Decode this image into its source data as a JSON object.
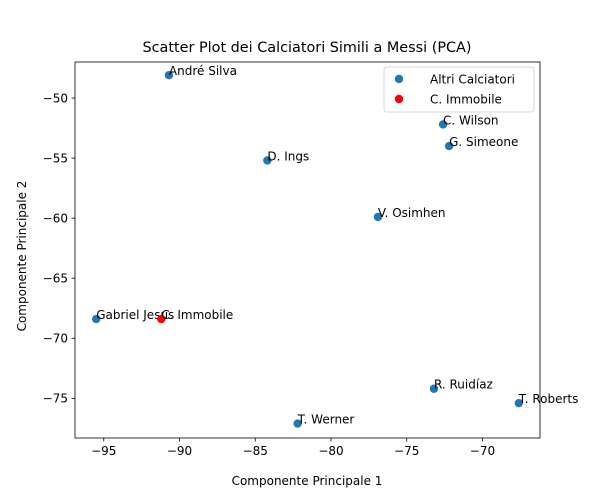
{
  "chart_data": {
    "type": "scatter",
    "title": "Scatter Plot dei Calciatori Simili a Messi (PCA)",
    "xlabel": "Componente Principale 1",
    "ylabel": "Componente Principale 2",
    "xlim": [
      -96.9,
      -66.2
    ],
    "ylim": [
      -78.3,
      -47.0
    ],
    "xticks": [
      -95,
      -90,
      -85,
      -80,
      -75,
      -70
    ],
    "yticks": [
      -75,
      -70,
      -65,
      -60,
      -55,
      -50
    ],
    "tick_labels_x": [
      "−95",
      "−90",
      "−85",
      "−80",
      "−75",
      "−70"
    ],
    "tick_labels_y": [
      "−75",
      "−70",
      "−65",
      "−60",
      "−55",
      "−50"
    ],
    "grid": false,
    "legend_position": "top-right",
    "series": [
      {
        "name": "Altri Calciatori",
        "color": "#1f77b4",
        "points": [
          {
            "label": "André Silva",
            "x": -90.7,
            "y": -48.1
          },
          {
            "label": "C. Wilson",
            "x": -72.6,
            "y": -52.2
          },
          {
            "label": "G. Simeone",
            "x": -72.2,
            "y": -54.0
          },
          {
            "label": "D. Ings",
            "x": -84.2,
            "y": -55.2
          },
          {
            "label": "V. Osimhen",
            "x": -76.9,
            "y": -59.9
          },
          {
            "label": "Gabriel Jesus",
            "x": -95.5,
            "y": -68.4
          },
          {
            "label": "R. Ruidíaz",
            "x": -73.2,
            "y": -74.2
          },
          {
            "label": "T. Roberts",
            "x": -67.6,
            "y": -75.4
          },
          {
            "label": "T. Werner",
            "x": -82.2,
            "y": -77.1
          }
        ]
      },
      {
        "name": "C. Immobile",
        "color": "#ff0000",
        "points": [
          {
            "label": "C. Immobile",
            "x": -91.2,
            "y": -68.4
          }
        ]
      }
    ]
  }
}
